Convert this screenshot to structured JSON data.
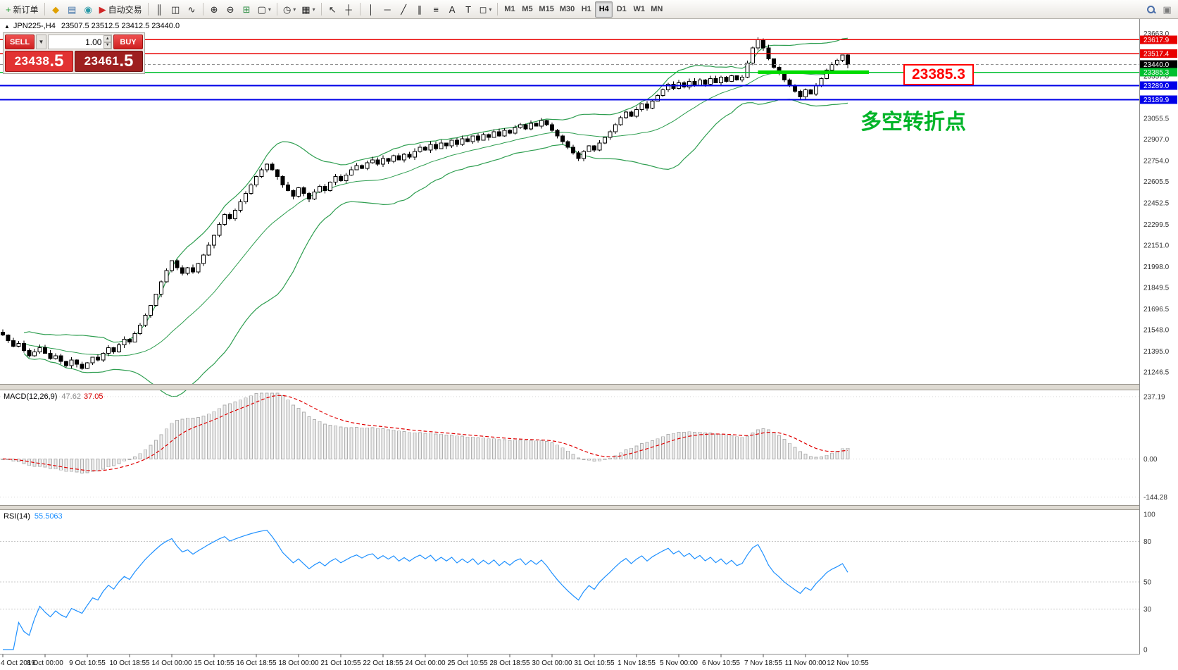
{
  "toolbar": {
    "left_buttons": [
      {
        "type": "button",
        "name": "new-order-button",
        "glyph": "+",
        "glyph_color": "#1f9d2f",
        "label": "新订单"
      },
      {
        "type": "sep"
      },
      {
        "type": "button",
        "name": "profiles-button",
        "glyph": "◆",
        "glyph_color": "#e0a000"
      },
      {
        "type": "button",
        "name": "data-window-button",
        "glyph": "▤",
        "glyph_color": "#3a6ea5"
      },
      {
        "type": "button",
        "name": "market-watch-button",
        "glyph": "◉",
        "glyph_color": "#2b9aa8"
      },
      {
        "type": "button",
        "name": "auto-trading-button",
        "glyph": "▶",
        "glyph_color": "#cf2525",
        "label": "自动交易"
      },
      {
        "type": "sep"
      },
      {
        "type": "button",
        "name": "bar-chart-type-button",
        "glyph": "║"
      },
      {
        "type": "button",
        "name": "candlestick-type-button",
        "glyph": "◫"
      },
      {
        "type": "button",
        "name": "line-chart-type-button",
        "glyph": "∿"
      },
      {
        "type": "sep"
      },
      {
        "type": "button",
        "name": "zoom-in-button",
        "glyph": "⊕"
      },
      {
        "type": "button",
        "name": "zoom-out-button",
        "glyph": "⊖"
      },
      {
        "type": "button",
        "name": "grid-button",
        "glyph": "⊞",
        "glyph_color": "#2f8f46"
      },
      {
        "type": "button",
        "name": "tile-windows-button",
        "glyph": "▢",
        "dropdown": true
      },
      {
        "type": "sep"
      },
      {
        "type": "button",
        "name": "periods-button",
        "glyph": "◷",
        "dropdown": true
      },
      {
        "type": "button",
        "name": "templates-button",
        "glyph": "▦",
        "dropdown": true
      },
      {
        "type": "sep"
      },
      {
        "type": "button",
        "name": "cursor-button",
        "glyph": "↖"
      },
      {
        "type": "button",
        "name": "crosshair-button",
        "glyph": "┼"
      },
      {
        "type": "sep"
      },
      {
        "type": "button",
        "name": "vertical-line-button",
        "glyph": "│"
      },
      {
        "type": "button",
        "name": "horizontal-line-button",
        "glyph": "─"
      },
      {
        "type": "button",
        "name": "trendline-button",
        "glyph": "╱"
      },
      {
        "type": "button",
        "name": "channel-button",
        "glyph": "∥"
      },
      {
        "type": "button",
        "name": "fibonacci-button",
        "glyph": "≡"
      },
      {
        "type": "button",
        "name": "text-button",
        "glyph": "A"
      },
      {
        "type": "button",
        "name": "text-label-button",
        "glyph": "T"
      },
      {
        "type": "button",
        "name": "shapes-button",
        "glyph": "◻",
        "dropdown": true
      },
      {
        "type": "sep"
      }
    ],
    "timeframes": [
      "M1",
      "M5",
      "M15",
      "M30",
      "H1",
      "H4",
      "D1",
      "W1",
      "MN"
    ],
    "active_timeframe": "H4",
    "right_buttons": [
      {
        "type": "button",
        "name": "search-button",
        "icon": "search"
      },
      {
        "type": "button",
        "name": "chart-switch-button",
        "glyph": "▣",
        "glyph_color": "#7a7a7a"
      }
    ]
  },
  "chart_header": {
    "collapse_glyph": "▲",
    "symbol": "JPN225-,H4",
    "ohlc": "23507.5 23512.5 23412.5 23440.0"
  },
  "trade_panel": {
    "sell_label": "SELL",
    "buy_label": "BUY",
    "order_dropdown_glyph": "▼",
    "volume": "1.00",
    "spin_up_glyph": "▲",
    "spin_down_glyph": "▼",
    "sell_price_main": "23438",
    "sell_price_frac": ".5",
    "buy_price_main": "23461",
    "buy_price_frac": ".5"
  },
  "annotations": {
    "price_box": "23385.3",
    "price_box_color": "#ff0000",
    "turning_point": "多空转折点",
    "turning_point_color": "#00b428"
  },
  "chart_data": {
    "type": "candlestick",
    "symbol": "JPN225-",
    "timeframe": "H4",
    "ohlc_last": {
      "open": 23507.5,
      "high": 23512.5,
      "low": 23412.5,
      "close": 23440.0
    },
    "current_price": 23440.0,
    "closes": [
      21510,
      21470,
      21430,
      21450,
      21400,
      21360,
      21390,
      21420,
      21380,
      21340,
      21360,
      21320,
      21290,
      21330,
      21300,
      21270,
      21310,
      21350,
      21330,
      21380,
      21420,
      21390,
      21440,
      21480,
      21460,
      21520,
      21580,
      21650,
      21720,
      21800,
      21890,
      21970,
      22040,
      21990,
      21950,
      21990,
      21960,
      22020,
      22080,
      22150,
      22220,
      22300,
      22370,
      22340,
      22400,
      22460,
      22520,
      22580,
      22640,
      22690,
      22730,
      22690,
      22640,
      22580,
      22540,
      22500,
      22560,
      22520,
      22480,
      22530,
      22570,
      22540,
      22600,
      22640,
      22610,
      22650,
      22690,
      22720,
      22700,
      22740,
      22760,
      22730,
      22770,
      22750,
      22790,
      22760,
      22800,
      22780,
      22820,
      22850,
      22830,
      22870,
      22840,
      22880,
      22860,
      22900,
      22870,
      22910,
      22890,
      22930,
      22900,
      22940,
      22920,
      22960,
      22930,
      22970,
      22950,
      22990,
      23010,
      22980,
      23020,
      23000,
      23040,
      23010,
      22970,
      22930,
      22890,
      22850,
      22810,
      22770,
      22820,
      22860,
      22830,
      22880,
      22920,
      22960,
      23010,
      23060,
      23100,
      23070,
      23120,
      23160,
      23130,
      23180,
      23220,
      23260,
      23300,
      23270,
      23310,
      23280,
      23320,
      23290,
      23330,
      23300,
      23340,
      23310,
      23350,
      23320,
      23360,
      23330,
      23350,
      23450,
      23560,
      23620,
      23560,
      23480,
      23420,
      23380,
      23330,
      23290,
      23250,
      23210,
      23260,
      23230,
      23290,
      23340,
      23400,
      23440,
      23470,
      23507.5,
      23440
    ],
    "x_labels": [
      {
        "bar": 0,
        "text": "4 Oct 2019"
      },
      {
        "bar": 8,
        "text": "8 Oct 00:00"
      },
      {
        "bar": 16,
        "text": "9 Oct 10:55"
      },
      {
        "bar": 24,
        "text": "10 Oct 18:55"
      },
      {
        "bar": 32,
        "text": "14 Oct 00:00"
      },
      {
        "bar": 40,
        "text": "15 Oct 10:55"
      },
      {
        "bar": 48,
        "text": "16 Oct 18:55"
      },
      {
        "bar": 56,
        "text": "18 Oct 00:00"
      },
      {
        "bar": 64,
        "text": "21 Oct 10:55"
      },
      {
        "bar": 72,
        "text": "22 Oct 18:55"
      },
      {
        "bar": 80,
        "text": "24 Oct 00:00"
      },
      {
        "bar": 88,
        "text": "25 Oct 10:55"
      },
      {
        "bar": 96,
        "text": "28 Oct 18:55"
      },
      {
        "bar": 104,
        "text": "30 Oct 00:00"
      },
      {
        "bar": 112,
        "text": "31 Oct 10:55"
      },
      {
        "bar": 120,
        "text": "1 Nov 18:55"
      },
      {
        "bar": 128,
        "text": "5 Nov 00:00"
      },
      {
        "bar": 136,
        "text": "6 Nov 10:55"
      },
      {
        "bar": 144,
        "text": "7 Nov 18:55"
      },
      {
        "bar": 152,
        "text": "11 Nov 00:00"
      },
      {
        "bar": 160,
        "text": "12 Nov 10:55"
      }
    ],
    "y_axis": {
      "max": 23760,
      "min": 21160,
      "ticks": [
        23663.0,
        23357.0,
        23055.5,
        22907.0,
        22754.0,
        22605.5,
        22452.5,
        22299.5,
        22151.0,
        21998.0,
        21849.5,
        21696.5,
        21548.0,
        21395.0,
        21246.5
      ]
    },
    "hlines": [
      {
        "value": 23617.9,
        "color": "#e80000",
        "width": 1.5,
        "tag": true
      },
      {
        "value": 23517.4,
        "color": "#e80000",
        "width": 1.5,
        "tag": true
      },
      {
        "value": 23385.3,
        "color": "#00c030",
        "width": 1.5,
        "tag": true,
        "segment": [
          143,
          164
        ],
        "segment_color": "#00dc00",
        "segment_width": 5
      },
      {
        "value": 23289.0,
        "color": "#0000e8",
        "width": 2,
        "tag": true
      },
      {
        "value": 23189.9,
        "color": "#0000e8",
        "width": 2,
        "tag": true
      }
    ],
    "indicators": {
      "bollinger": {
        "period": 20,
        "deviation": 2,
        "color": "#2e9e50"
      },
      "macd": {
        "label": "MACD(12,26,9)",
        "value_main": "47.62",
        "value_signal": "37.05",
        "fast": 12,
        "slow": 26,
        "signal": 9,
        "axis_range": [
          -165,
          250
        ],
        "ticks": [
          {
            "v": 237.19,
            "s": "237.19"
          },
          {
            "v": 0,
            "s": "0.00"
          },
          {
            "v": -144.28,
            "s": "-144.28"
          }
        ],
        "hist_fill": "#ededed",
        "hist_stroke": "#b0b0b0",
        "signal_color": "#e00000"
      },
      "rsi": {
        "label": "RSI(14)",
        "value": "55.5063",
        "period": 14,
        "color": "#1e90ff",
        "levels": [
          80,
          50,
          30
        ],
        "ticks": [
          100,
          80,
          50,
          30,
          0
        ],
        "range": [
          0,
          100
        ]
      }
    },
    "colors": {
      "bull_candle": "#ffffff",
      "bear_candle": "#000000",
      "candle_outline": "#000000",
      "background": "#ffffff"
    }
  }
}
